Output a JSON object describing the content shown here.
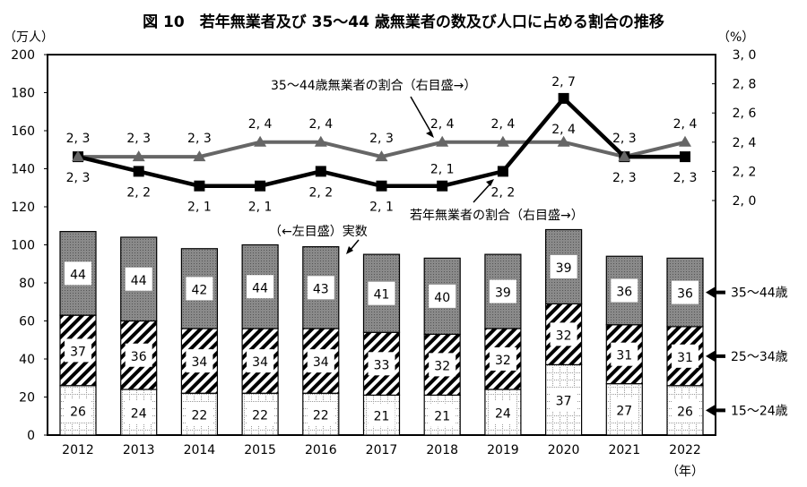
{
  "chart_data": {
    "type": "bar+line",
    "title": "図 10　若年無業者及び 35～44 歳無業者の数及び人口に占める割合の推移",
    "left_unit": "（万人）",
    "right_unit": "（%）",
    "xlabel_unit": "（年）",
    "categories": [
      "2012",
      "2013",
      "2014",
      "2015",
      "2016",
      "2017",
      "2018",
      "2019",
      "2020",
      "2021",
      "2022"
    ],
    "left_axis": {
      "ylim": [
        0,
        200
      ],
      "ticks": [
        "0",
        "20",
        "40",
        "60",
        "80",
        "100",
        "120",
        "140",
        "160",
        "180",
        "200"
      ]
    },
    "right_axis": {
      "ylim": [
        2.0,
        3.0
      ],
      "ticks": [
        "2.0",
        "2.2",
        "2.4",
        "2.6",
        "2.8",
        "3.0"
      ]
    },
    "bar_series": [
      {
        "name": "15～24歳",
        "values": [
          26,
          24,
          22,
          22,
          22,
          21,
          21,
          24,
          37,
          27,
          26
        ]
      },
      {
        "name": "25～34歳",
        "values": [
          37,
          36,
          34,
          34,
          34,
          33,
          32,
          32,
          32,
          31,
          31
        ]
      },
      {
        "name": "35～44歳",
        "values": [
          44,
          44,
          42,
          44,
          43,
          41,
          40,
          39,
          39,
          36,
          36
        ]
      }
    ],
    "line_series": [
      {
        "name": "若年無業者の割合（右目盛→）",
        "values": [
          2.3,
          2.2,
          2.1,
          2.1,
          2.2,
          2.1,
          2.1,
          2.2,
          2.7,
          2.3,
          2.3
        ],
        "labels": [
          "2, 3",
          "2, 2",
          "2, 1",
          "2, 1",
          "2, 2",
          "2, 1",
          "2, 1",
          "2, 2",
          "2, 7",
          "2, 3",
          "2, 3"
        ],
        "color": "#000000"
      },
      {
        "name": "35～44歳無業者の割合（右目盛→）",
        "values": [
          2.3,
          2.3,
          2.3,
          2.4,
          2.4,
          2.3,
          2.4,
          2.4,
          2.4,
          2.3,
          2.4
        ],
        "labels": [
          "2, 3",
          "2, 3",
          "2, 3",
          "2, 4",
          "2, 4",
          "2, 3",
          "2, 4",
          "2, 4",
          "2, 4",
          "2, 3",
          "2, 4"
        ],
        "color": "#666666"
      }
    ],
    "annotations": {
      "bars": "（←左目盛）実数"
    }
  }
}
